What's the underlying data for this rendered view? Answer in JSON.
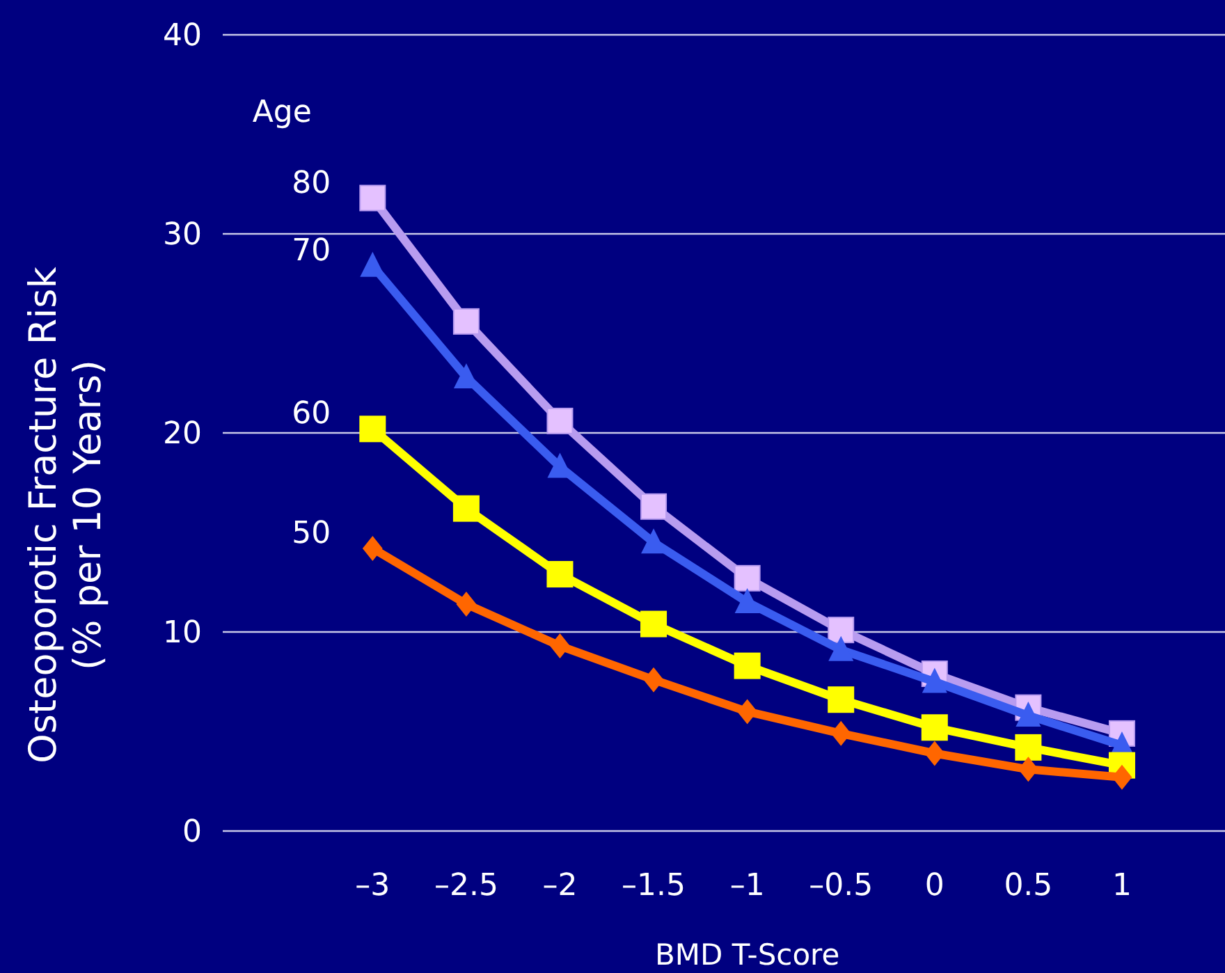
{
  "chart_data": {
    "type": "line",
    "xlabel": "BMD T-Score",
    "ylabel": "Osteoporotic Fracture Risk\n(% per 10 Years)",
    "annotations": [
      "Age"
    ],
    "x": [
      -3,
      -2.5,
      -2,
      -1.5,
      -1,
      -0.5,
      0,
      0.5,
      1
    ],
    "xlim": [
      -3.8,
      1.55
    ],
    "xticks": [
      {
        "value": -3,
        "label": "–3"
      },
      {
        "value": -2.5,
        "label": "–2.5"
      },
      {
        "value": -2,
        "label": "–2"
      },
      {
        "value": -1.5,
        "label": "–1.5"
      },
      {
        "value": -1,
        "label": "–1"
      },
      {
        "value": -0.5,
        "label": "–0.5"
      },
      0,
      0.5,
      1
    ],
    "ylim": [
      0,
      40
    ],
    "yticks": [
      0,
      10,
      20,
      30,
      40
    ],
    "grid": "y",
    "line_style": "solid",
    "series": [
      {
        "name": "80",
        "color": "#b89cf0",
        "marker": "square",
        "values": [
          31.8,
          25.6,
          20.6,
          16.3,
          12.7,
          10.1,
          7.9,
          6.2,
          4.9
        ]
      },
      {
        "name": "70",
        "color": "#3a5cf0",
        "marker": "triangle",
        "values": [
          28.4,
          22.8,
          18.3,
          14.5,
          11.5,
          9.1,
          7.5,
          5.8,
          4.3
        ]
      },
      {
        "name": "60",
        "color": "#ffff00",
        "marker": "square",
        "values": [
          20.2,
          16.2,
          12.9,
          10.4,
          8.3,
          6.6,
          5.2,
          4.2,
          3.3
        ]
      },
      {
        "name": "50",
        "color": "#ff6600",
        "marker": "diamond",
        "values": [
          14.2,
          11.4,
          9.3,
          7.6,
          6.0,
          4.9,
          3.9,
          3.1,
          2.7
        ]
      }
    ]
  }
}
